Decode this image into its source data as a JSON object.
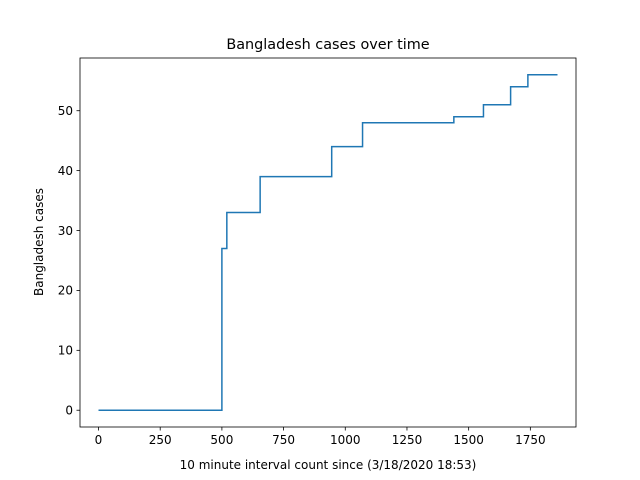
{
  "chart_data": {
    "type": "line",
    "title": "Bangladesh cases over time",
    "xlabel": "10 minute interval count since (3/18/2020 18:53)",
    "ylabel": "Bangladesh cases",
    "xlim": [
      -75,
      1935
    ],
    "ylim": [
      -2.8,
      58.8
    ],
    "x_ticks": [
      0,
      250,
      500,
      750,
      1000,
      1250,
      1500,
      1750
    ],
    "y_ticks": [
      0,
      10,
      20,
      30,
      40,
      50
    ],
    "grid": false,
    "legend": null,
    "line_color": "#1f77b4",
    "series": [
      {
        "x": [
          0,
          500,
          500,
          520,
          520,
          655,
          655,
          945,
          945,
          1070,
          1070,
          1440,
          1440,
          1560,
          1560,
          1670,
          1670,
          1740,
          1740,
          1860
        ],
        "y": [
          0,
          0,
          27,
          27,
          33,
          33,
          39,
          39,
          44,
          44,
          48,
          48,
          49,
          49,
          51,
          51,
          54,
          54,
          56,
          56
        ]
      }
    ]
  }
}
